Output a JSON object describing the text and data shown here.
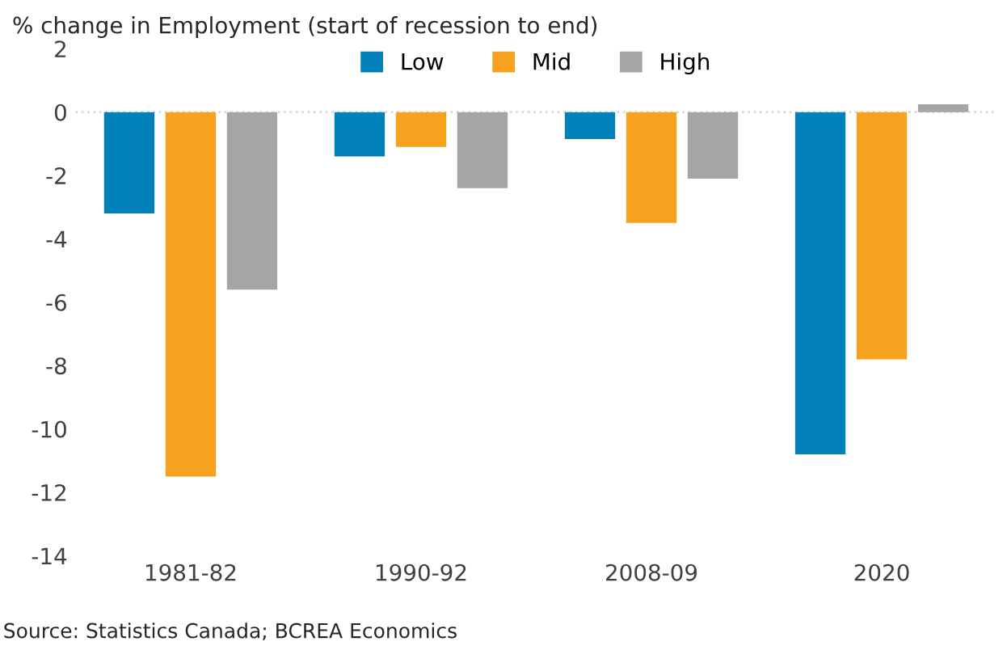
{
  "chart_data": {
    "type": "bar",
    "title": "% change in Employment (start of recession to end)",
    "categories": [
      "1981-82",
      "1990-92",
      "2008-09",
      "2020"
    ],
    "series": [
      {
        "name": "Low",
        "color": "#0081b9",
        "values": [
          -3.2,
          -1.4,
          -0.85,
          -10.8
        ]
      },
      {
        "name": "Mid",
        "color": "#f6a21e",
        "values": [
          -11.5,
          -1.1,
          -3.5,
          -7.8
        ]
      },
      {
        "name": "High",
        "color": "#a5a5a5",
        "values": [
          -5.6,
          -2.4,
          -2.1,
          0.25
        ]
      }
    ],
    "ylim": [
      -14,
      2
    ],
    "yticks": [
      {
        "value": -14,
        "label": "-14"
      },
      {
        "value": -12,
        "label": "-12"
      },
      {
        "value": -10,
        "label": "-10"
      },
      {
        "value": -8,
        "label": "-8"
      },
      {
        "value": -6,
        "label": "-6"
      },
      {
        "value": -4,
        "label": "-4"
      },
      {
        "value": -2,
        "label": "-2"
      },
      0,
      2
    ],
    "grid": false,
    "legend": "top",
    "ref_lines": [
      {
        "axis": "y",
        "value": 0,
        "color": "#d9d9d9",
        "line_style": "dotted"
      }
    ],
    "annotations": [
      "Source: Statistics Canada; BCREA Economics"
    ]
  }
}
